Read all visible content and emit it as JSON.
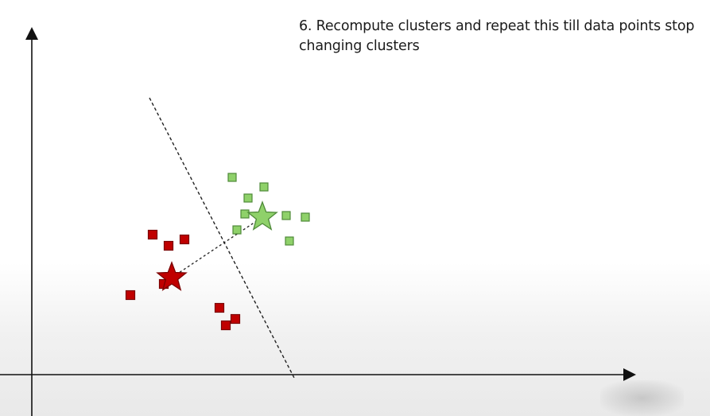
{
  "caption": {
    "line1": "6. Recompute clusters and repeat this till data points stop",
    "line2": "changing clusters"
  },
  "colors": {
    "axis": "#111111",
    "red_cluster_fill": "#c00000",
    "red_cluster_stroke": "#7a0000",
    "green_cluster_fill": "#8fd16a",
    "green_cluster_stroke": "#4f8a3a",
    "divider": "#222222",
    "centroid_link": "#222222"
  },
  "clusters": [
    {
      "name": "red",
      "marker": "square",
      "points": [
        [
          3.1,
          2.5
        ],
        [
          3.8,
          4.4
        ],
        [
          4.3,
          4.05
        ],
        [
          4.8,
          4.25
        ],
        [
          4.15,
          2.85
        ],
        [
          5.9,
          2.1
        ],
        [
          6.1,
          1.55
        ],
        [
          6.4,
          1.75
        ]
      ],
      "centroid": [
        4.4,
        3.05
      ]
    },
    {
      "name": "green",
      "marker": "square",
      "points": [
        [
          6.3,
          6.2
        ],
        [
          6.8,
          5.55
        ],
        [
          7.3,
          5.9
        ],
        [
          6.45,
          4.55
        ],
        [
          6.7,
          5.05
        ],
        [
          8.0,
          5.0
        ],
        [
          8.6,
          4.95
        ],
        [
          8.1,
          4.2
        ]
      ],
      "centroid": [
        7.25,
        4.95
      ]
    }
  ],
  "divider": [
    [
      3.7,
      8.7
    ],
    [
      8.25,
      -0.1
    ]
  ]
}
